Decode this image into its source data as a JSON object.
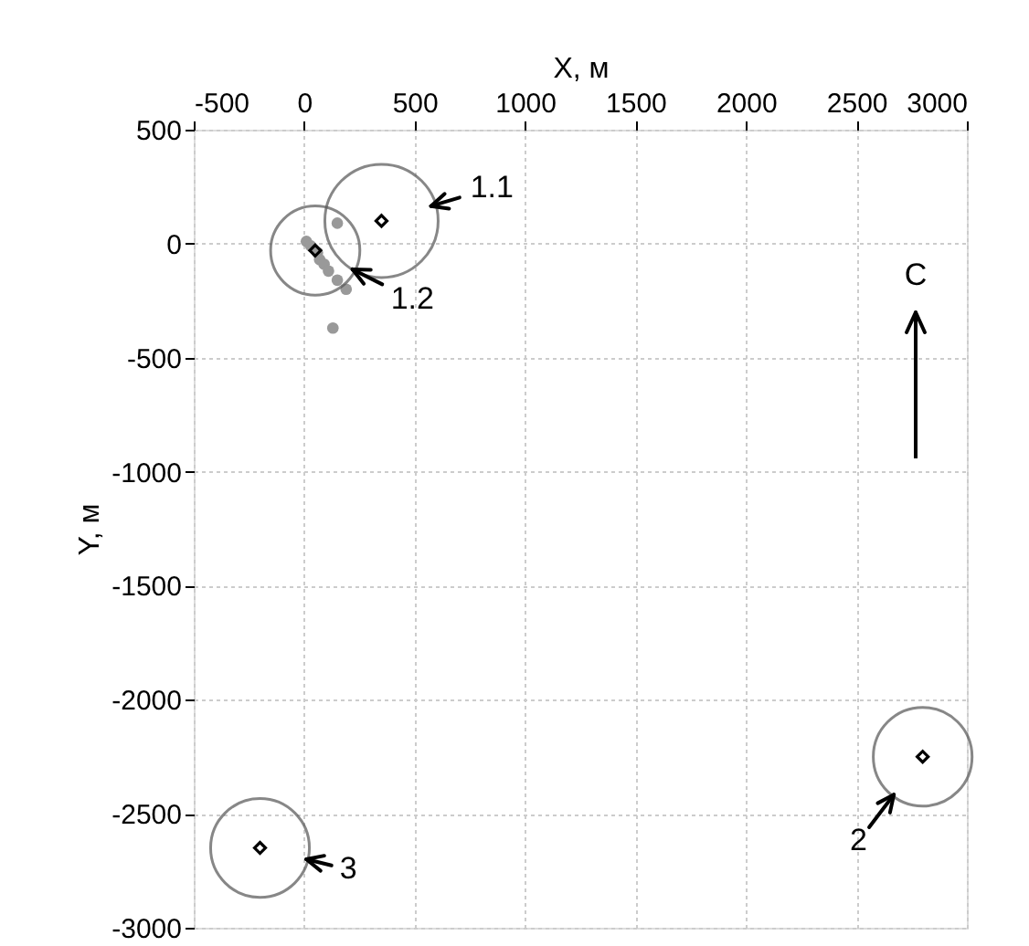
{
  "chart_data": {
    "type": "scatter",
    "xlabel": "X, м",
    "ylabel": "Y, м",
    "xlim": [
      -500,
      3000
    ],
    "xticks": [
      -500,
      0,
      500,
      1000,
      1500,
      2000,
      2500,
      3000
    ],
    "ylim": [
      -3000,
      500
    ],
    "yticks": [
      500,
      0,
      -500,
      -1000,
      -1500,
      -2000,
      -2500,
      -3000
    ],
    "grid": true,
    "series": [
      {
        "color": "#999999",
        "marker": "circle",
        "x": [
          10,
          30,
          60,
          70,
          90,
          110,
          130,
          150,
          150,
          190
        ],
        "values": [
          10,
          -10,
          -40,
          -70,
          -90,
          -120,
          -370,
          90,
          -160,
          -200
        ]
      },
      {
        "type": "bubble",
        "color": "#555555",
        "marker": "circle",
        "x": [
          350,
          50,
          2800,
          -200
        ],
        "values": [
          100,
          -30,
          -2250,
          -2650
        ],
        "sizes": [
          1,
          0.62,
          0.76,
          0.76
        ]
      },
      {
        "color": "#000000",
        "marker": "diamond",
        "x": [
          350,
          50,
          2800,
          -200
        ],
        "values": [
          100,
          -30,
          -2250,
          -2650
        ]
      }
    ],
    "annotations": [
      {
        "text": "1.1",
        "x": 350,
        "y": 100
      },
      {
        "text": "1.2",
        "x": 50,
        "y": -30
      },
      {
        "text": "2",
        "x": 2800,
        "y": -2250
      },
      {
        "text": "3",
        "x": -200,
        "y": -2650
      },
      "С"
    ]
  }
}
